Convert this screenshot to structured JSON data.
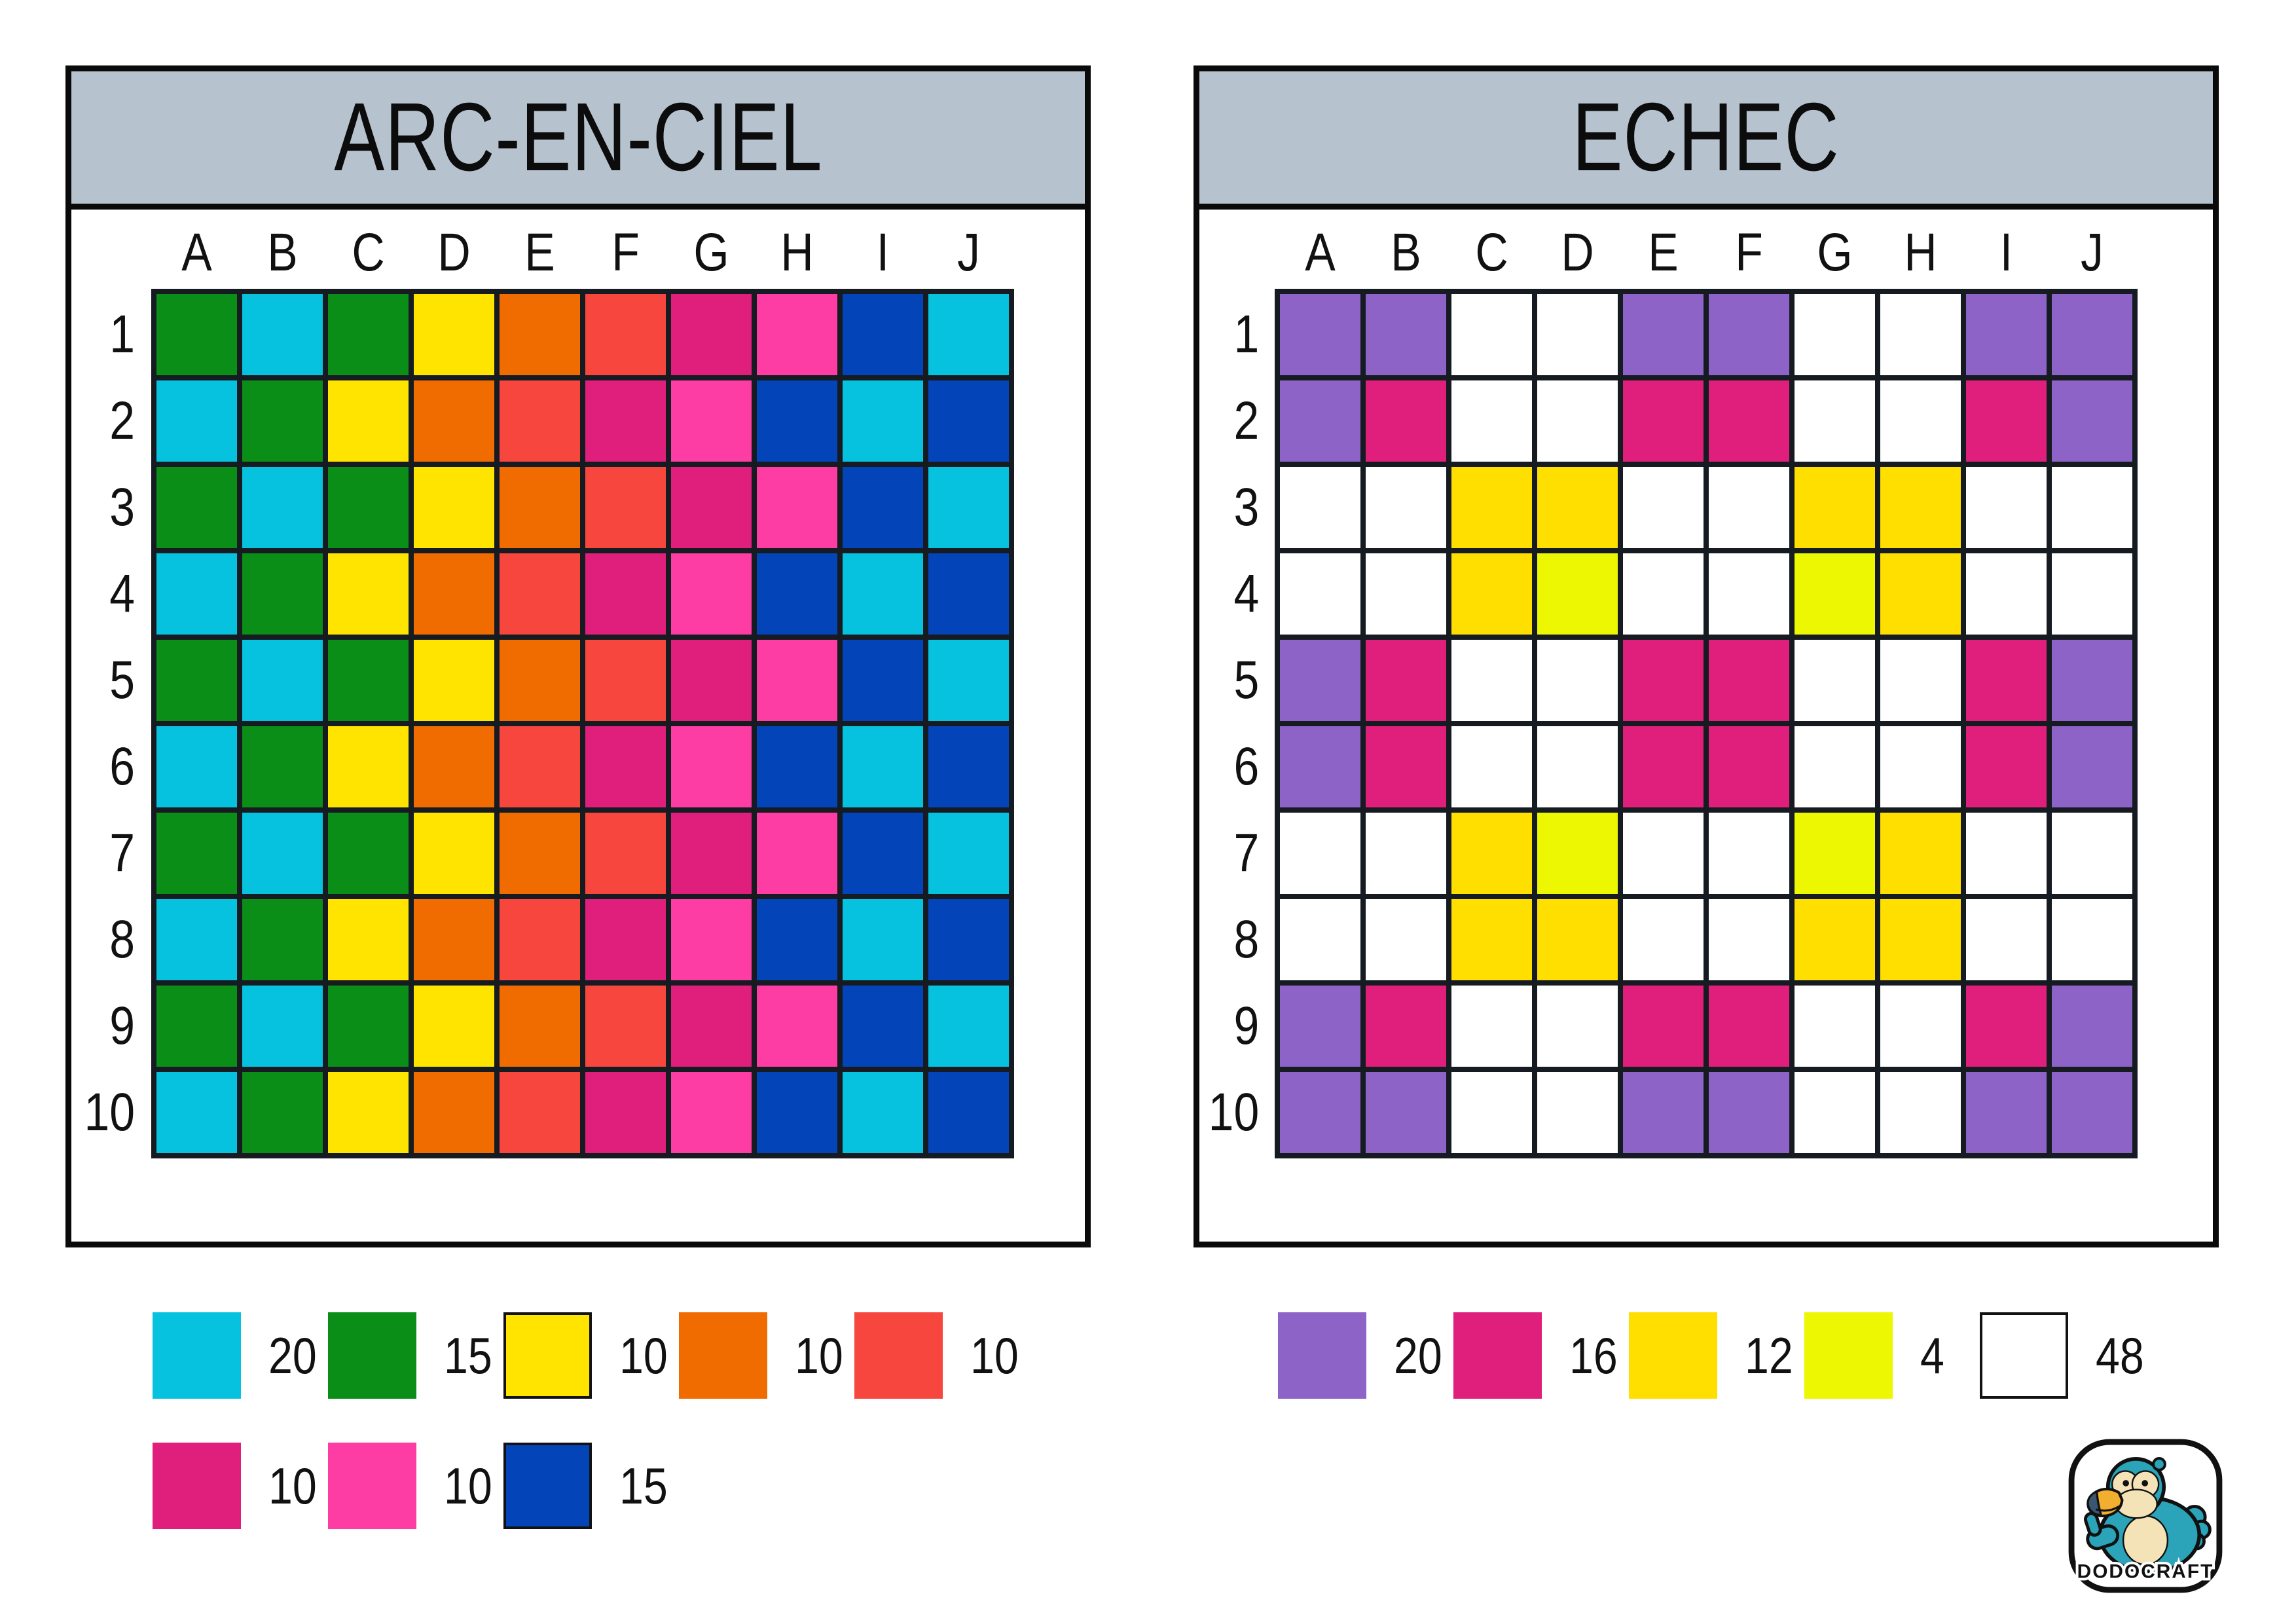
{
  "colors": {
    "cyan": "#07C2DE",
    "green": "#0A8E18",
    "yellow": "#FFE400",
    "orange": "#F06C00",
    "red": "#F7463E",
    "magenta": "#E01E7B",
    "pink": "#FD3CA4",
    "blue": "#0345B8",
    "purple": "#8D63C8",
    "gold": "#FFDF00",
    "neon": "#EDF702",
    "white": "#FFFFFF",
    "grid_line": "#151B21",
    "panel_border": "#0A0A0A",
    "title_bar_bg": "#B6C3CF"
  },
  "panels": [
    {
      "title": "ARC-EN-CIEL",
      "columns": [
        "A",
        "B",
        "C",
        "D",
        "E",
        "F",
        "G",
        "H",
        "I",
        "J"
      ],
      "rows": [
        "1",
        "2",
        "3",
        "4",
        "5",
        "6",
        "7",
        "8",
        "9",
        "10"
      ],
      "grid": [
        [
          "green",
          "cyan",
          "green",
          "yellow",
          "orange",
          "red",
          "magenta",
          "pink",
          "blue",
          "cyan"
        ],
        [
          "cyan",
          "green",
          "yellow",
          "orange",
          "red",
          "magenta",
          "pink",
          "blue",
          "cyan",
          "blue"
        ],
        [
          "green",
          "cyan",
          "green",
          "yellow",
          "orange",
          "red",
          "magenta",
          "pink",
          "blue",
          "cyan"
        ],
        [
          "cyan",
          "green",
          "yellow",
          "orange",
          "red",
          "magenta",
          "pink",
          "blue",
          "cyan",
          "blue"
        ],
        [
          "green",
          "cyan",
          "green",
          "yellow",
          "orange",
          "red",
          "magenta",
          "pink",
          "blue",
          "cyan"
        ],
        [
          "cyan",
          "green",
          "yellow",
          "orange",
          "red",
          "magenta",
          "pink",
          "blue",
          "cyan",
          "blue"
        ],
        [
          "green",
          "cyan",
          "green",
          "yellow",
          "orange",
          "red",
          "magenta",
          "pink",
          "blue",
          "cyan"
        ],
        [
          "cyan",
          "green",
          "yellow",
          "orange",
          "red",
          "magenta",
          "pink",
          "blue",
          "cyan",
          "blue"
        ],
        [
          "green",
          "cyan",
          "green",
          "yellow",
          "orange",
          "red",
          "magenta",
          "pink",
          "blue",
          "cyan"
        ],
        [
          "cyan",
          "green",
          "yellow",
          "orange",
          "red",
          "magenta",
          "pink",
          "blue",
          "cyan",
          "blue"
        ]
      ],
      "legend_rows": [
        [
          {
            "color": "cyan",
            "count": "20",
            "bordered": false
          },
          {
            "color": "green",
            "count": "15",
            "bordered": false
          },
          {
            "color": "yellow",
            "count": "10",
            "bordered": true
          },
          {
            "color": "orange",
            "count": "10",
            "bordered": false
          },
          {
            "color": "red",
            "count": "10",
            "bordered": false
          }
        ],
        [
          {
            "color": "magenta",
            "count": "10",
            "bordered": false
          },
          {
            "color": "pink",
            "count": "10",
            "bordered": false
          },
          {
            "color": "blue",
            "count": "15",
            "bordered": true
          }
        ]
      ]
    },
    {
      "title": "ECHEC",
      "columns": [
        "A",
        "B",
        "C",
        "D",
        "E",
        "F",
        "G",
        "H",
        "I",
        "J"
      ],
      "rows": [
        "1",
        "2",
        "3",
        "4",
        "5",
        "6",
        "7",
        "8",
        "9",
        "10"
      ],
      "grid": [
        [
          "purple",
          "purple",
          "white",
          "white",
          "purple",
          "purple",
          "white",
          "white",
          "purple",
          "purple"
        ],
        [
          "purple",
          "magenta",
          "white",
          "white",
          "magenta",
          "magenta",
          "white",
          "white",
          "magenta",
          "purple"
        ],
        [
          "white",
          "white",
          "gold",
          "gold",
          "white",
          "white",
          "gold",
          "gold",
          "white",
          "white"
        ],
        [
          "white",
          "white",
          "gold",
          "neon",
          "white",
          "white",
          "neon",
          "gold",
          "white",
          "white"
        ],
        [
          "purple",
          "magenta",
          "white",
          "white",
          "magenta",
          "magenta",
          "white",
          "white",
          "magenta",
          "purple"
        ],
        [
          "purple",
          "magenta",
          "white",
          "white",
          "magenta",
          "magenta",
          "white",
          "white",
          "magenta",
          "purple"
        ],
        [
          "white",
          "white",
          "gold",
          "neon",
          "white",
          "white",
          "neon",
          "gold",
          "white",
          "white"
        ],
        [
          "white",
          "white",
          "gold",
          "gold",
          "white",
          "white",
          "gold",
          "gold",
          "white",
          "white"
        ],
        [
          "purple",
          "magenta",
          "white",
          "white",
          "magenta",
          "magenta",
          "white",
          "white",
          "magenta",
          "purple"
        ],
        [
          "purple",
          "purple",
          "white",
          "white",
          "purple",
          "purple",
          "white",
          "white",
          "purple",
          "purple"
        ]
      ],
      "legend_rows": [
        [
          {
            "color": "purple",
            "count": "20",
            "bordered": false
          },
          {
            "color": "magenta",
            "count": "16",
            "bordered": false
          },
          {
            "color": "gold",
            "count": "12",
            "bordered": false
          },
          {
            "color": "neon",
            "count": "4",
            "bordered": false
          },
          {
            "color": "white",
            "count": "48",
            "bordered": true
          }
        ]
      ]
    }
  ],
  "logo": {
    "text": "DODOCRAFT"
  }
}
